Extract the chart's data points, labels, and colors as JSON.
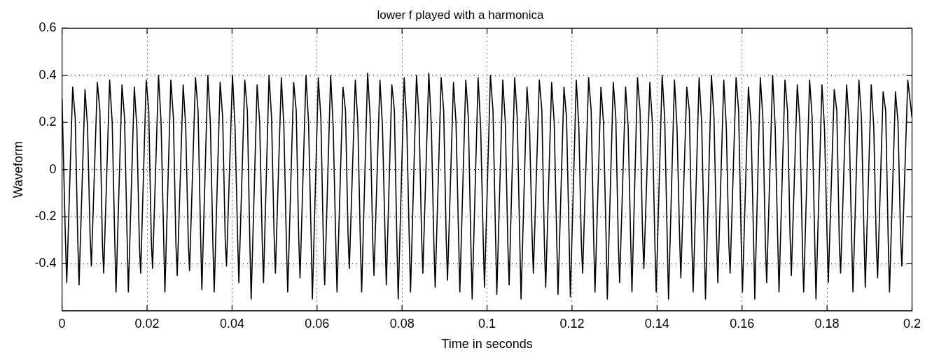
{
  "chart_data": {
    "type": "line",
    "title": "lower f played with a harmonica",
    "xlabel": "Time in seconds",
    "ylabel": "Waveform",
    "xlim": [
      0,
      0.2
    ],
    "ylim": [
      -0.6,
      0.6
    ],
    "xticks": [
      0,
      0.02,
      0.04,
      0.06,
      0.08,
      0.1,
      0.12,
      0.14,
      0.16,
      0.18,
      0.2
    ],
    "yticks": [
      -0.4,
      -0.2,
      0,
      0.2,
      0.4,
      0.6
    ],
    "grid": true,
    "marker": "none",
    "line_style": "solid",
    "series": [
      {
        "color": "#000000",
        "x": [
          0,
          0.0008,
          0.0011,
          0.0025,
          0.0031,
          0.0037,
          0.004,
          0.0054,
          0.006,
          0.0066,
          0.0069,
          0.0083,
          0.0089,
          0.0095,
          0.0098,
          0.0112,
          0.0118,
          0.0124,
          0.0127,
          0.0141,
          0.0147,
          0.0153,
          0.0156,
          0.017,
          0.0176,
          0.0182,
          0.0185,
          0.0198,
          0.0204,
          0.021,
          0.0213,
          0.0227,
          0.0233,
          0.0239,
          0.0242,
          0.0256,
          0.0262,
          0.0268,
          0.0271,
          0.0285,
          0.0291,
          0.0297,
          0.03,
          0.0314,
          0.032,
          0.0326,
          0.0329,
          0.0343,
          0.0349,
          0.0355,
          0.0358,
          0.0372,
          0.0378,
          0.0384,
          0.0387,
          0.0401,
          0.0407,
          0.0413,
          0.0416,
          0.043,
          0.0436,
          0.0442,
          0.0445,
          0.0459,
          0.0465,
          0.0471,
          0.0474,
          0.0487,
          0.0493,
          0.0499,
          0.0502,
          0.0516,
          0.0522,
          0.0528,
          0.0531,
          0.0545,
          0.0551,
          0.0557,
          0.056,
          0.0574,
          0.058,
          0.0586,
          0.0589,
          0.0603,
          0.0609,
          0.0615,
          0.0618,
          0.0632,
          0.0638,
          0.0644,
          0.0647,
          0.0661,
          0.0667,
          0.0673,
          0.0676,
          0.069,
          0.0696,
          0.0702,
          0.0705,
          0.0719,
          0.0725,
          0.0731,
          0.0734,
          0.0748,
          0.0754,
          0.076,
          0.0763,
          0.0776,
          0.0782,
          0.0788,
          0.0791,
          0.0805,
          0.0811,
          0.0817,
          0.082,
          0.0834,
          0.084,
          0.0846,
          0.0849,
          0.0863,
          0.0869,
          0.0875,
          0.0878,
          0.0892,
          0.0898,
          0.0904,
          0.0907,
          0.0921,
          0.0927,
          0.0933,
          0.0936,
          0.095,
          0.0956,
          0.0962,
          0.0965,
          0.0979,
          0.0985,
          0.0991,
          0.0994,
          0.1008,
          0.1014,
          0.102,
          0.1023,
          0.1037,
          0.1043,
          0.1049,
          0.1052,
          0.1065,
          0.1071,
          0.1077,
          0.108,
          0.1094,
          0.11,
          0.1106,
          0.1109,
          0.1123,
          0.1129,
          0.1135,
          0.1138,
          0.1152,
          0.1158,
          0.1164,
          0.1167,
          0.1181,
          0.1187,
          0.1193,
          0.1196,
          0.121,
          0.1216,
          0.1222,
          0.1225,
          0.1239,
          0.1245,
          0.1251,
          0.1254,
          0.1268,
          0.1274,
          0.128,
          0.1283,
          0.1297,
          0.1303,
          0.1309,
          0.1312,
          0.1326,
          0.1332,
          0.1338,
          0.1341,
          0.1354,
          0.136,
          0.1366,
          0.1369,
          0.1383,
          0.1389,
          0.1395,
          0.1398,
          0.1412,
          0.1418,
          0.1424,
          0.1427,
          0.1441,
          0.1447,
          0.1453,
          0.1456,
          0.147,
          0.1476,
          0.1482,
          0.1485,
          0.1499,
          0.1505,
          0.1511,
          0.1514,
          0.1528,
          0.1534,
          0.154,
          0.1543,
          0.1557,
          0.1563,
          0.1569,
          0.1572,
          0.1586,
          0.1592,
          0.1598,
          0.1601,
          0.1615,
          0.1621,
          0.1627,
          0.163,
          0.1643,
          0.1649,
          0.1655,
          0.1658,
          0.1672,
          0.1678,
          0.1684,
          0.1687,
          0.1701,
          0.1707,
          0.1713,
          0.1716,
          0.173,
          0.1736,
          0.1742,
          0.1745,
          0.1759,
          0.1765,
          0.1771,
          0.1774,
          0.1788,
          0.1794,
          0.18,
          0.1803,
          0.1817,
          0.1823,
          0.1829,
          0.1832,
          0.1846,
          0.1852,
          0.1858,
          0.1861,
          0.1875,
          0.1881,
          0.1887,
          0.189,
          0.1904,
          0.191,
          0.1916,
          0.1919,
          0.1932,
          0.1938,
          0.1944,
          0.1947,
          0.1961,
          0.1967,
          0.1973,
          0.1976,
          0.199,
          0.2
        ],
        "values": [
          0.3,
          -0.3,
          -0.48,
          0.35,
          0.22,
          -0.3,
          -0.49,
          0.34,
          0.18,
          -0.28,
          -0.41,
          0.37,
          0.25,
          -0.32,
          -0.44,
          0.38,
          0.2,
          -0.3,
          -0.52,
          0.36,
          0.22,
          -0.28,
          -0.52,
          0.35,
          0.18,
          -0.32,
          -0.44,
          0.38,
          0.25,
          -0.3,
          -0.42,
          0.4,
          0.2,
          -0.28,
          -0.52,
          0.38,
          0.22,
          -0.32,
          -0.45,
          0.36,
          0.18,
          -0.3,
          -0.43,
          0.39,
          0.25,
          -0.28,
          -0.51,
          0.4,
          0.2,
          -0.32,
          -0.52,
          0.37,
          0.22,
          -0.3,
          -0.41,
          0.4,
          0.18,
          -0.28,
          -0.48,
          0.38,
          0.25,
          -0.32,
          -0.55,
          0.36,
          0.2,
          -0.3,
          -0.48,
          0.4,
          0.22,
          -0.28,
          -0.44,
          0.39,
          0.18,
          -0.32,
          -0.52,
          0.37,
          0.25,
          -0.3,
          -0.46,
          0.4,
          0.2,
          -0.28,
          -0.55,
          0.39,
          0.22,
          -0.32,
          -0.49,
          0.4,
          0.18,
          -0.3,
          -0.52,
          0.35,
          0.25,
          -0.28,
          -0.42,
          0.38,
          0.2,
          -0.32,
          -0.52,
          0.41,
          0.22,
          -0.3,
          -0.45,
          0.38,
          0.18,
          -0.28,
          -0.49,
          0.36,
          0.25,
          -0.32,
          -0.55,
          0.39,
          0.2,
          -0.3,
          -0.52,
          0.4,
          0.22,
          -0.28,
          -0.44,
          0.41,
          0.18,
          -0.32,
          -0.5,
          0.39,
          0.25,
          -0.3,
          -0.47,
          0.37,
          0.2,
          -0.28,
          -0.52,
          0.38,
          0.22,
          -0.32,
          -0.55,
          0.39,
          0.18,
          -0.3,
          -0.5,
          0.4,
          0.25,
          -0.28,
          -0.53,
          0.38,
          0.2,
          -0.32,
          -0.49,
          0.39,
          0.22,
          -0.3,
          -0.55,
          0.35,
          0.18,
          -0.28,
          -0.44,
          0.38,
          0.25,
          -0.32,
          -0.5,
          0.37,
          0.2,
          -0.3,
          -0.53,
          0.35,
          0.22,
          -0.28,
          -0.54,
          0.38,
          0.18,
          -0.32,
          -0.44,
          0.39,
          0.25,
          -0.3,
          -0.52,
          0.35,
          0.2,
          -0.28,
          -0.55,
          0.37,
          0.22,
          -0.32,
          -0.48,
          0.35,
          0.18,
          -0.3,
          -0.52,
          0.39,
          0.25,
          -0.28,
          -0.42,
          0.37,
          0.2,
          -0.32,
          -0.52,
          0.4,
          0.22,
          -0.3,
          -0.55,
          0.38,
          0.18,
          -0.28,
          -0.46,
          0.35,
          0.25,
          -0.32,
          -0.52,
          0.39,
          0.2,
          -0.3,
          -0.55,
          0.4,
          0.22,
          -0.28,
          -0.48,
          0.38,
          0.18,
          -0.32,
          -0.44,
          0.39,
          0.25,
          -0.3,
          -0.52,
          0.35,
          0.2,
          -0.28,
          -0.55,
          0.39,
          0.22,
          -0.32,
          -0.48,
          0.4,
          0.18,
          -0.3,
          -0.52,
          0.38,
          0.25,
          -0.28,
          -0.45,
          0.36,
          0.2,
          -0.32,
          -0.52,
          0.38,
          0.22,
          -0.3,
          -0.55,
          0.36,
          0.18,
          -0.28,
          -0.48,
          0.34,
          0.25,
          -0.32,
          -0.44,
          0.36,
          0.2,
          -0.3,
          -0.52,
          0.38,
          0.22,
          -0.28,
          -0.5,
          0.36,
          0.18,
          -0.32,
          -0.46,
          0.33,
          0.25,
          -0.3,
          -0.52,
          0.33,
          0.2,
          -0.28,
          -0.41,
          0.38,
          0.22
        ]
      }
    ]
  }
}
